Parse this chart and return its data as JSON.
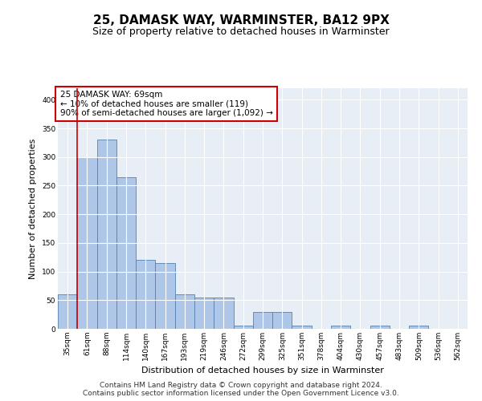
{
  "title": "25, DAMASK WAY, WARMINSTER, BA12 9PX",
  "subtitle": "Size of property relative to detached houses in Warminster",
  "xlabel": "Distribution of detached houses by size in Warminster",
  "ylabel": "Number of detached properties",
  "categories": [
    "35sqm",
    "61sqm",
    "88sqm",
    "114sqm",
    "140sqm",
    "167sqm",
    "193sqm",
    "219sqm",
    "246sqm",
    "272sqm",
    "299sqm",
    "325sqm",
    "351sqm",
    "378sqm",
    "404sqm",
    "430sqm",
    "457sqm",
    "483sqm",
    "509sqm",
    "536sqm",
    "562sqm"
  ],
  "values": [
    60,
    300,
    330,
    265,
    120,
    115,
    60,
    55,
    55,
    5,
    30,
    30,
    5,
    0,
    5,
    0,
    5,
    0,
    5,
    0,
    0
  ],
  "bar_color": "#aec6e8",
  "bar_edge_color": "#5580b0",
  "vline_x_index": 1,
  "vline_color": "#cc0000",
  "annotation_text": "25 DAMASK WAY: 69sqm\n← 10% of detached houses are smaller (119)\n90% of semi-detached houses are larger (1,092) →",
  "annotation_box_facecolor": "#ffffff",
  "annotation_box_edgecolor": "#cc0000",
  "ylim": [
    0,
    420
  ],
  "yticks": [
    0,
    50,
    100,
    150,
    200,
    250,
    300,
    350,
    400
  ],
  "background_color": "#e8eef6",
  "footer_text": "Contains HM Land Registry data © Crown copyright and database right 2024.\nContains public sector information licensed under the Open Government Licence v3.0.",
  "title_fontsize": 11,
  "subtitle_fontsize": 9,
  "xlabel_fontsize": 8,
  "ylabel_fontsize": 8,
  "annotation_fontsize": 7.5,
  "tick_fontsize": 6.5,
  "footer_fontsize": 6.5
}
